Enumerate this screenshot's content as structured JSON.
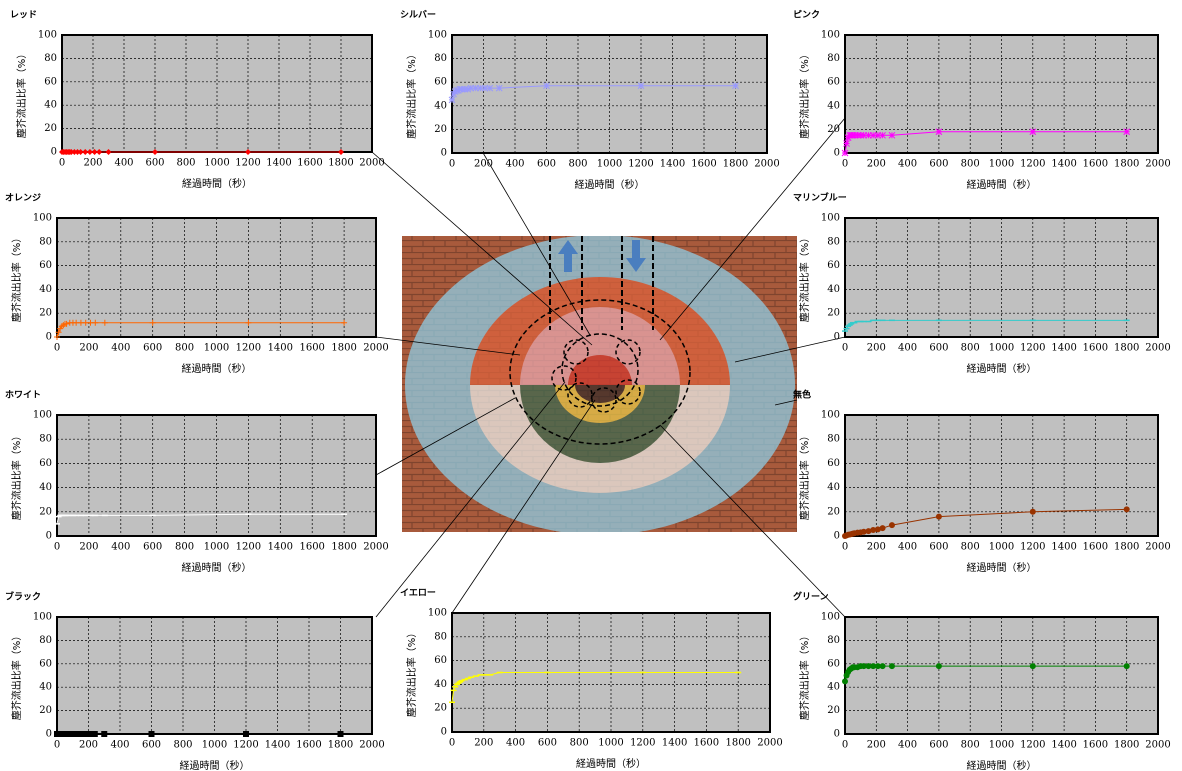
{
  "chart_data": [
    {
      "type": "line",
      "title": "レッド",
      "y_label": "塵芥流出比率（%）",
      "x_label": "経過時間（秒）",
      "color": "#ff0000",
      "marker": "diamond",
      "x": [
        0,
        10,
        20,
        30,
        40,
        50,
        60,
        80,
        100,
        120,
        150,
        180,
        210,
        240,
        300,
        600,
        1200,
        1800
      ],
      "values": [
        0,
        0,
        0,
        0,
        0,
        0,
        0,
        0,
        0,
        0,
        0,
        0,
        0,
        0,
        0,
        0,
        0,
        0
      ],
      "xlim": [
        0,
        2000
      ],
      "xticks": [
        0,
        200,
        400,
        600,
        800,
        1000,
        1200,
        1400,
        1600,
        1800,
        2000
      ],
      "ylim": [
        0,
        100
      ],
      "yticks": [
        0,
        20,
        40,
        60,
        80,
        100
      ],
      "grid": true
    },
    {
      "type": "line",
      "title": "シルバー",
      "y_label": "塵芥流出比率（%）",
      "x_label": "経過時間（秒）",
      "color": "#9999ff",
      "marker": "star",
      "x": [
        0,
        10,
        20,
        30,
        40,
        50,
        60,
        80,
        100,
        120,
        150,
        180,
        210,
        240,
        300,
        600,
        1200,
        1800
      ],
      "values": [
        45,
        50,
        52,
        53,
        53,
        54,
        54,
        54,
        54,
        55,
        55,
        55,
        55,
        55,
        55,
        57,
        57,
        57
      ],
      "xlim": [
        0,
        2000
      ],
      "xticks": [
        0,
        200,
        400,
        600,
        800,
        1000,
        1200,
        1400,
        1600,
        1800,
        2000
      ],
      "ylim": [
        0,
        100
      ],
      "yticks": [
        0,
        20,
        40,
        60,
        80,
        100
      ],
      "grid": true
    },
    {
      "type": "line",
      "title": "ピンク",
      "y_label": "塵芥流出比率（%）",
      "x_label": "経過時間（秒）",
      "color": "#ff00ff",
      "marker": "star",
      "x": [
        0,
        10,
        20,
        30,
        40,
        50,
        60,
        80,
        100,
        120,
        150,
        180,
        210,
        240,
        300,
        600,
        1200,
        1800
      ],
      "values": [
        0,
        8,
        13,
        15,
        15,
        15,
        15,
        15,
        15,
        15,
        15,
        15,
        15,
        15,
        15,
        18,
        18,
        18
      ],
      "xlim": [
        0,
        2000
      ],
      "xticks": [
        0,
        200,
        400,
        600,
        800,
        1000,
        1200,
        1400,
        1600,
        1800,
        2000
      ],
      "ylim": [
        0,
        100
      ],
      "yticks": [
        0,
        20,
        40,
        60,
        80,
        100
      ],
      "grid": true
    },
    {
      "type": "line",
      "title": "オレンジ",
      "y_label": "塵芥流出比率（%）",
      "x_label": "経過時間（秒）",
      "color": "#ff6600",
      "marker": "plus",
      "x": [
        0,
        10,
        20,
        30,
        40,
        50,
        60,
        80,
        100,
        120,
        150,
        180,
        210,
        240,
        300,
        600,
        1200,
        1800
      ],
      "values": [
        0,
        4,
        7,
        9,
        10,
        11,
        11,
        12,
        12,
        12,
        12,
        12,
        12,
        12,
        12,
        12,
        12,
        12
      ],
      "xlim": [
        0,
        2000
      ],
      "xticks": [
        0,
        200,
        400,
        600,
        800,
        1000,
        1200,
        1400,
        1600,
        1800,
        2000
      ],
      "ylim": [
        0,
        100
      ],
      "yticks": [
        0,
        20,
        40,
        60,
        80,
        100
      ],
      "grid": true
    },
    {
      "type": "line",
      "title": "マリンブルー",
      "y_label": "塵芥流出比率（%）",
      "x_label": "経過時間（秒）",
      "color": "#33cccc",
      "marker": "dash",
      "x": [
        0,
        10,
        20,
        30,
        40,
        50,
        60,
        80,
        100,
        120,
        150,
        180,
        210,
        240,
        300,
        600,
        1200,
        1800
      ],
      "values": [
        5,
        7,
        9,
        10,
        11,
        12,
        12,
        13,
        13,
        13,
        13,
        14,
        14,
        14,
        14,
        14,
        14,
        14
      ],
      "xlim": [
        0,
        2000
      ],
      "xticks": [
        0,
        200,
        400,
        600,
        800,
        1000,
        1200,
        1400,
        1600,
        1800,
        2000
      ],
      "ylim": [
        0,
        100
      ],
      "yticks": [
        0,
        20,
        40,
        60,
        80,
        100
      ],
      "grid": true
    },
    {
      "type": "line",
      "title": "ホワイト",
      "y_label": "塵芥流出比率（%）",
      "x_label": "経過時間（秒）",
      "color": "#ffffff",
      "marker": "dash",
      "x": [
        0,
        10,
        20,
        30,
        40,
        50,
        60,
        80,
        100,
        120,
        150,
        180,
        210,
        240,
        300,
        600,
        1200,
        1800
      ],
      "values": [
        10,
        16,
        17,
        17,
        17,
        17,
        17,
        17,
        17,
        17,
        17,
        17,
        17,
        17,
        17,
        17,
        18,
        18
      ],
      "xlim": [
        0,
        2000
      ],
      "xticks": [
        0,
        200,
        400,
        600,
        800,
        1000,
        1200,
        1400,
        1600,
        1800,
        2000
      ],
      "ylim": [
        0,
        100
      ],
      "yticks": [
        0,
        20,
        40,
        60,
        80,
        100
      ],
      "grid": true
    },
    {
      "type": "line",
      "title": "無色",
      "y_label": "塵芥流出比率（%）",
      "x_label": "経過時間（秒）",
      "color": "#993300",
      "marker": "circle",
      "x": [
        0,
        10,
        20,
        30,
        40,
        50,
        60,
        80,
        100,
        120,
        150,
        180,
        210,
        240,
        300,
        600,
        1200,
        1800
      ],
      "values": [
        0,
        0.5,
        1,
        1.2,
        1.5,
        2,
        2.3,
        2.8,
        3,
        3.5,
        4,
        5,
        5.5,
        6.5,
        9,
        16,
        20,
        22
      ],
      "xlim": [
        0,
        2000
      ],
      "xticks": [
        0,
        200,
        400,
        600,
        800,
        1000,
        1200,
        1400,
        1600,
        1800,
        2000
      ],
      "ylim": [
        0,
        100
      ],
      "yticks": [
        0,
        20,
        40,
        60,
        80,
        100
      ],
      "grid": true
    },
    {
      "type": "line",
      "title": "ブラック",
      "y_label": "塵芥流出比率（%）",
      "x_label": "経過時間（秒）",
      "color": "#000000",
      "marker": "square",
      "x": [
        0,
        10,
        20,
        30,
        40,
        50,
        60,
        80,
        100,
        120,
        150,
        180,
        210,
        240,
        300,
        600,
        1200,
        1800
      ],
      "values": [
        0,
        0,
        0,
        0,
        0,
        0,
        0,
        0,
        0,
        0,
        0,
        0,
        0,
        0,
        0,
        0,
        0,
        0
      ],
      "xlim": [
        0,
        2000
      ],
      "xticks": [
        0,
        200,
        400,
        600,
        800,
        1000,
        1200,
        1400,
        1600,
        1800,
        2000
      ],
      "ylim": [
        0,
        100
      ],
      "yticks": [
        0,
        20,
        40,
        60,
        80,
        100
      ],
      "grid": true
    },
    {
      "type": "line",
      "title": "イエロー",
      "y_label": "塵芥流出比率（%）",
      "x_label": "経過時間（秒）",
      "color": "#ffff00",
      "marker": "dash",
      "x": [
        0,
        10,
        20,
        30,
        40,
        50,
        60,
        80,
        100,
        120,
        150,
        180,
        210,
        240,
        300,
        600,
        1200,
        1800
      ],
      "values": [
        25,
        35,
        38,
        40,
        41,
        42,
        43,
        44,
        45,
        46,
        47,
        48,
        48,
        48,
        50,
        50,
        50,
        50
      ],
      "xlim": [
        0,
        2000
      ],
      "xticks": [
        0,
        200,
        400,
        600,
        800,
        1000,
        1200,
        1400,
        1600,
        1800,
        2000
      ],
      "ylim": [
        0,
        100
      ],
      "yticks": [
        0,
        20,
        40,
        60,
        80,
        100
      ],
      "grid": true
    },
    {
      "type": "line",
      "title": "グリーン",
      "y_label": "塵芥流出比率（%）",
      "x_label": "経過時間（秒）",
      "color": "#008000",
      "marker": "circle",
      "x": [
        0,
        10,
        20,
        30,
        40,
        50,
        60,
        80,
        100,
        120,
        150,
        180,
        210,
        240,
        300,
        600,
        1200,
        1800
      ],
      "values": [
        45,
        50,
        53,
        55,
        56,
        57,
        57,
        57,
        58,
        58,
        58,
        58,
        58,
        58,
        58,
        58,
        58,
        58
      ],
      "xlim": [
        0,
        2000
      ],
      "xticks": [
        0,
        200,
        400,
        600,
        800,
        1000,
        1200,
        1400,
        1600,
        1800,
        2000
      ],
      "ylim": [
        0,
        100
      ],
      "yticks": [
        0,
        20,
        40,
        60,
        80,
        100
      ],
      "grid": true
    }
  ]
}
